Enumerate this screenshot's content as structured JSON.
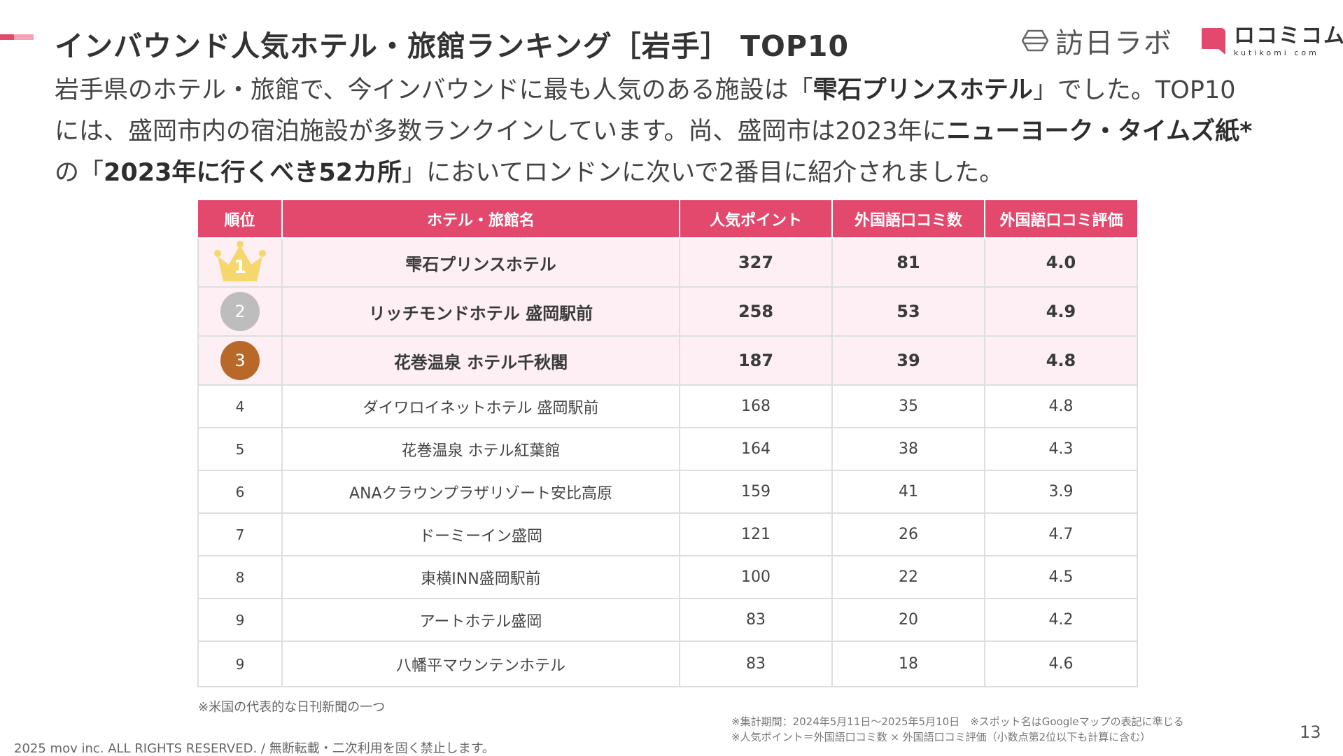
{
  "header": {
    "title": "インバウンド人気ホテル・旅館ランキング［岩手］ TOP10",
    "brand_primary": "訪日ラボ",
    "brand_secondary": "ロコミコム",
    "brand_secondary_sub": "kutikomi com",
    "accent_color": "#e3486d"
  },
  "intro": {
    "line1_a": "岩手県のホテル・旅館で、今インバウンドに最も人気のある施設は「",
    "line1_b": "雫石プリンスホテル",
    "line1_c": "」でした。TOP10",
    "line2_a": "には、盛岡市内の宿泊施設が多数ランクインしています。尚、盛岡市は2023年に",
    "line2_b": "ニューヨーク・タイムズ紙*",
    "line3_a": "の「",
    "line3_b": "2023年に行くべき52カ所",
    "line3_c": "」においてロンドンに次いで2番目に紹介されました。"
  },
  "table": {
    "headers": [
      "順位",
      "ホテル・旅館名",
      "人気ポイント",
      "外国語口コミ数",
      "外国語口コミ評価"
    ],
    "rows": [
      {
        "rank": "1",
        "name": "雫石プリンスホテル",
        "points": "327",
        "reviews": "81",
        "rating": "4.0"
      },
      {
        "rank": "2",
        "name": "リッチモンドホテル 盛岡駅前",
        "points": "258",
        "reviews": "53",
        "rating": "4.9"
      },
      {
        "rank": "3",
        "name": "花巻温泉 ホテル千秋閣",
        "points": "187",
        "reviews": "39",
        "rating": "4.8"
      },
      {
        "rank": "4",
        "name": "ダイワロイネットホテル 盛岡駅前",
        "points": "168",
        "reviews": "35",
        "rating": "4.8"
      },
      {
        "rank": "5",
        "name": "花巻温泉 ホテル紅葉館",
        "points": "164",
        "reviews": "38",
        "rating": "4.3"
      },
      {
        "rank": "6",
        "name": "ANAクラウンプラザリゾート安比高原",
        "points": "159",
        "reviews": "41",
        "rating": "3.9"
      },
      {
        "rank": "7",
        "name": "ドーミーイン盛岡",
        "points": "121",
        "reviews": "26",
        "rating": "4.7"
      },
      {
        "rank": "8",
        "name": "東横INN盛岡駅前",
        "points": "100",
        "reviews": "22",
        "rating": "4.5"
      },
      {
        "rank": "9",
        "name": "アートホテル盛岡",
        "points": "83",
        "reviews": "20",
        "rating": "4.2"
      },
      {
        "rank": "9",
        "name": "八幡平マウンテンホテル",
        "points": "83",
        "reviews": "18",
        "rating": "4.6"
      }
    ]
  },
  "footnotes": {
    "asterisk": "※米国の代表的な日刊新聞の一つ",
    "period": "※集計期間：2024年5月11日〜2025年5月10日　※スポット名はGoogleマップの表記に準じる",
    "formula": "※人気ポイント＝外国語口コミ数 × 外国語口コミ評価（小数点第2位以下も計算に含む）",
    "copyright": "2025 mov inc. ALL RIGHTS RESERVED. / 無断転載・二次利用を固く禁止します。",
    "page_number": "13"
  },
  "icons": {
    "rank1": "gold-crown-icon",
    "rank2": "silver-medal-icon",
    "rank3": "bronze-medal-icon"
  }
}
